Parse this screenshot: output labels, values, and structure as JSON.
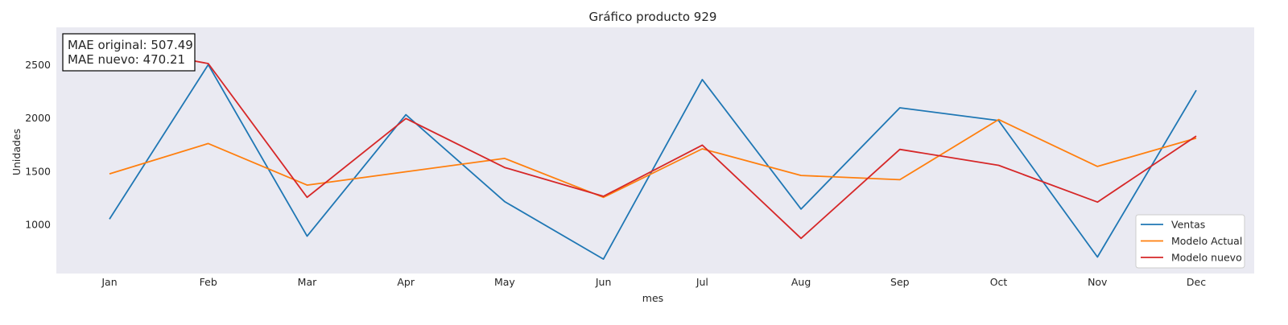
{
  "chart_data": {
    "type": "line",
    "title": "Gráfico producto 929",
    "xlabel": "mes",
    "ylabel": "Unidades",
    "categories": [
      "Jan",
      "Feb",
      "Mar",
      "Apr",
      "May",
      "Jun",
      "Jul",
      "Aug",
      "Sep",
      "Oct",
      "Nov",
      "Dec"
    ],
    "ylim": [
      540,
      2850
    ],
    "yticks": [
      1000,
      1500,
      2000,
      2500
    ],
    "grid": false,
    "legend_position": "lower-right",
    "annotation": {
      "lines": [
        "MAE original: 507.49",
        "MAE nuevo: 470.21"
      ]
    },
    "series": [
      {
        "name": "Ventas",
        "color": "#1f77b4",
        "values": [
          1050,
          2500,
          890,
          2030,
          1215,
          675,
          2360,
          1145,
          2095,
          1975,
          695,
          2260
        ]
      },
      {
        "name": "Modelo Actual",
        "color": "#ff7f0e",
        "values": [
          1475,
          1760,
          1370,
          1495,
          1620,
          1255,
          1710,
          1460,
          1420,
          1985,
          1545,
          1810
        ]
      },
      {
        "name": "Modelo nuevo",
        "color": "#d62728",
        "values": [
          2680,
          2510,
          1255,
          1995,
          1535,
          1265,
          1745,
          870,
          1705,
          1555,
          1210,
          1830
        ]
      }
    ],
    "plot_background": "#eaeaf2"
  }
}
